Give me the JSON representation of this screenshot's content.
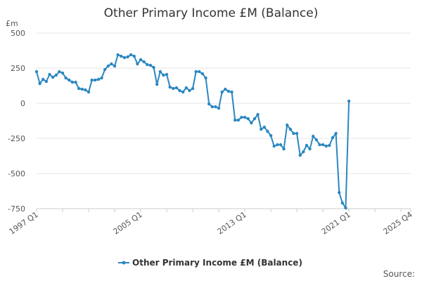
{
  "chart_data": {
    "type": "line",
    "title": "Other Primary Income £M (Balance)",
    "y_unit_label": "£m",
    "ylim": [
      -750,
      500
    ],
    "y_ticks": [
      -750,
      -500,
      -250,
      0,
      250,
      500
    ],
    "y_tick_labels": [
      "-750",
      "-500",
      "-250",
      "0",
      "250",
      "500"
    ],
    "x_range": [
      "1997 Q1",
      "2025 Q4"
    ],
    "x_tick_labels": [
      "1997 Q1",
      "2005 Q1",
      "2013 Q1",
      "2021 Q1",
      "2025 Q4"
    ],
    "grid": true,
    "legend_position": "bottom",
    "source_label": "Source:",
    "series": [
      {
        "name": "Other Primary Income £M (Balance)",
        "color": "#2b87c0",
        "x": [
          "1997 Q1",
          "1997 Q2",
          "1997 Q3",
          "1997 Q4",
          "1998 Q1",
          "1998 Q2",
          "1998 Q3",
          "1998 Q4",
          "1999 Q1",
          "1999 Q2",
          "1999 Q3",
          "1999 Q4",
          "2000 Q1",
          "2000 Q2",
          "2000 Q3",
          "2000 Q4",
          "2001 Q1",
          "2001 Q2",
          "2001 Q3",
          "2001 Q4",
          "2002 Q1",
          "2002 Q2",
          "2002 Q3",
          "2002 Q4",
          "2003 Q1",
          "2003 Q2",
          "2003 Q3",
          "2003 Q4",
          "2004 Q1",
          "2004 Q2",
          "2004 Q3",
          "2004 Q4",
          "2005 Q1",
          "2005 Q2",
          "2005 Q3",
          "2005 Q4",
          "2006 Q1",
          "2006 Q2",
          "2006 Q3",
          "2006 Q4",
          "2007 Q1",
          "2007 Q2",
          "2007 Q3",
          "2007 Q4",
          "2008 Q1",
          "2008 Q2",
          "2008 Q3",
          "2008 Q4",
          "2009 Q1",
          "2009 Q2",
          "2009 Q3",
          "2009 Q4",
          "2010 Q1",
          "2010 Q2",
          "2010 Q3",
          "2010 Q4",
          "2011 Q1",
          "2011 Q2",
          "2011 Q3",
          "2011 Q4",
          "2012 Q1",
          "2012 Q2",
          "2012 Q3",
          "2012 Q4",
          "2013 Q1",
          "2013 Q2",
          "2013 Q3",
          "2013 Q4",
          "2014 Q1",
          "2014 Q2",
          "2014 Q3",
          "2014 Q4",
          "2015 Q1",
          "2015 Q2",
          "2015 Q3",
          "2015 Q4",
          "2016 Q1",
          "2016 Q2",
          "2016 Q3",
          "2016 Q4",
          "2017 Q1",
          "2017 Q2",
          "2017 Q3",
          "2017 Q4",
          "2018 Q1",
          "2018 Q2",
          "2018 Q3",
          "2018 Q4",
          "2019 Q1",
          "2019 Q2",
          "2019 Q3",
          "2019 Q4",
          "2020 Q1",
          "2020 Q2",
          "2020 Q3",
          "2020 Q4",
          "2021 Q1"
        ],
        "values": [
          225,
          140,
          170,
          155,
          205,
          185,
          200,
          225,
          215,
          180,
          165,
          150,
          150,
          105,
          100,
          95,
          80,
          165,
          165,
          170,
          180,
          240,
          265,
          280,
          265,
          345,
          335,
          325,
          330,
          345,
          335,
          280,
          310,
          295,
          275,
          270,
          255,
          135,
          225,
          200,
          205,
          115,
          105,
          110,
          90,
          80,
          110,
          90,
          105,
          225,
          225,
          210,
          180,
          -5,
          -25,
          -25,
          -35,
          80,
          100,
          85,
          80,
          -120,
          -120,
          -100,
          -100,
          -110,
          -140,
          -110,
          -80,
          -185,
          -170,
          -200,
          -230,
          -305,
          -295,
          -295,
          -325,
          -155,
          -185,
          -215,
          -215,
          -370,
          -345,
          -300,
          -325,
          -235,
          -260,
          -295,
          -295,
          -305,
          -300,
          -245,
          -215,
          -635,
          -710,
          -745,
          15
        ]
      }
    ]
  }
}
